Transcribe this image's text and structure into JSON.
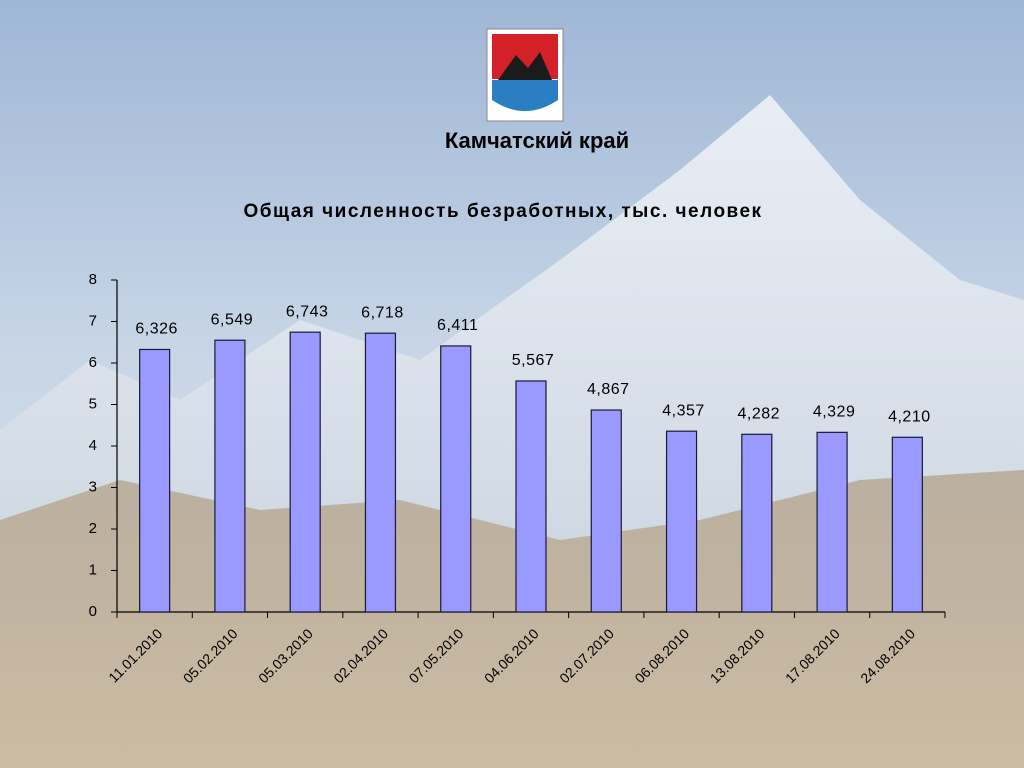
{
  "header": {
    "title": "Камчатский край"
  },
  "chart_data": {
    "type": "bar",
    "title": "Общая численность безработных, тыс. человек",
    "categories": [
      "11.01.2010",
      "05.02.2010",
      "05.03.2010",
      "02.04.2010",
      "07.05.2010",
      "04.06.2010",
      "02.07.2010",
      "06.08.2010",
      "13.08.2010",
      "17.08.2010",
      "24.08.2010"
    ],
    "values": [
      6.326,
      6.549,
      6.743,
      6.718,
      6.411,
      5.567,
      4.867,
      4.357,
      4.282,
      4.329,
      4.21
    ],
    "value_labels": [
      "6,326",
      "6,549",
      "6,743",
      "6,718",
      "6,411",
      "5,567",
      "4,867",
      "4,357",
      "4,282",
      "4,329",
      "4,210"
    ],
    "color": "#9999ff",
    "ylim": [
      0,
      8
    ],
    "yticks": [
      0,
      1,
      2,
      3,
      4,
      5,
      6,
      7,
      8
    ],
    "grid": false
  }
}
